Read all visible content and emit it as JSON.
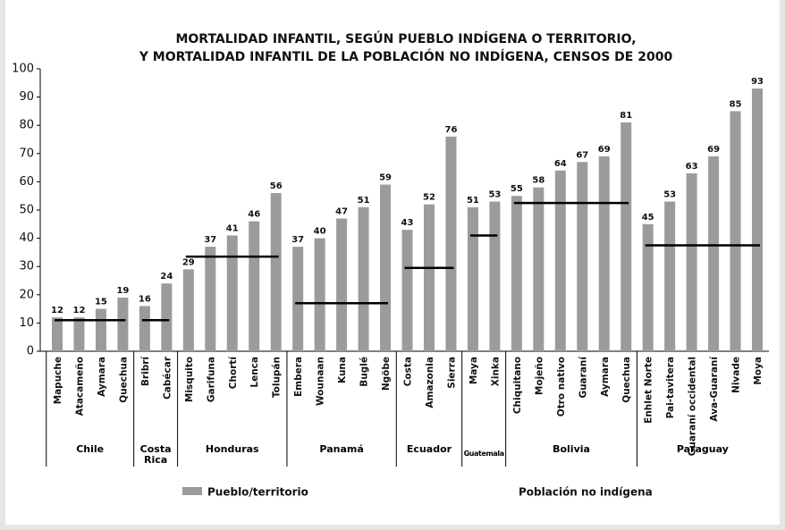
{
  "chart_data": {
    "type": "bar",
    "title": [
      "MORTALIDAD INFANTIL, SEGÚN PUEBLO INDÍGENA O TERRITORIO,",
      "Y MORTALIDAD INFANTIL DE LA POBLACIÓN NO INDÍGENA, CENSOS DE 2000"
    ],
    "ylim": [
      0,
      100
    ],
    "yticks": [
      0,
      10,
      20,
      30,
      40,
      50,
      60,
      70,
      80,
      90,
      100
    ],
    "bar_color": "#9b9b9b",
    "line_color": "#000000",
    "legend": {
      "bars": "Pueblo/territorio",
      "line": "Población no indígena"
    },
    "groups": [
      {
        "name": "Chile",
        "categories": [
          "Mapuche",
          "Atacameño",
          "Aymara",
          "Quechua"
        ],
        "values": [
          12,
          12,
          15,
          19
        ],
        "non_indigenous": 11
      },
      {
        "name": "Costa Rica",
        "categories": [
          "Bribrí",
          "Cabécar"
        ],
        "values": [
          16,
          24
        ],
        "non_indigenous": 11
      },
      {
        "name": "Honduras",
        "categories": [
          "Misquito",
          "Garifuna",
          "Chortí",
          "Lenca",
          "Tolupán"
        ],
        "values": [
          29,
          37,
          41,
          46,
          56
        ],
        "non_indigenous": 33.5
      },
      {
        "name": "Panamá",
        "categories": [
          "Embera",
          "Wounaan",
          "Kuna",
          "Buglé",
          "Ngöbe"
        ],
        "values": [
          37,
          40,
          47,
          51,
          59
        ],
        "non_indigenous": 17
      },
      {
        "name": "Ecuador",
        "categories": [
          "Costa",
          "Amazonia",
          "Sierra"
        ],
        "values": [
          43,
          52,
          76
        ],
        "non_indigenous": 29.5
      },
      {
        "name": "Guatemala",
        "categories": [
          "Maya",
          "Xinka"
        ],
        "values": [
          51,
          53
        ],
        "non_indigenous": 41
      },
      {
        "name": "Bolivia",
        "categories": [
          "Chiquitano",
          "Mojeño",
          "Otro nativo",
          "Guaraní",
          "Aymara",
          "Quechua"
        ],
        "values": [
          55,
          58,
          64,
          67,
          69,
          81
        ],
        "non_indigenous": 52.5
      },
      {
        "name": "Paraguay",
        "categories": [
          "Enhlet Norte",
          "Pai-tavitera",
          "Guaraní occidental",
          "Ava-Guaraní",
          "Nivade",
          "Moya"
        ],
        "values": [
          45,
          53,
          63,
          69,
          85,
          93
        ],
        "non_indigenous": 37.5
      }
    ]
  }
}
